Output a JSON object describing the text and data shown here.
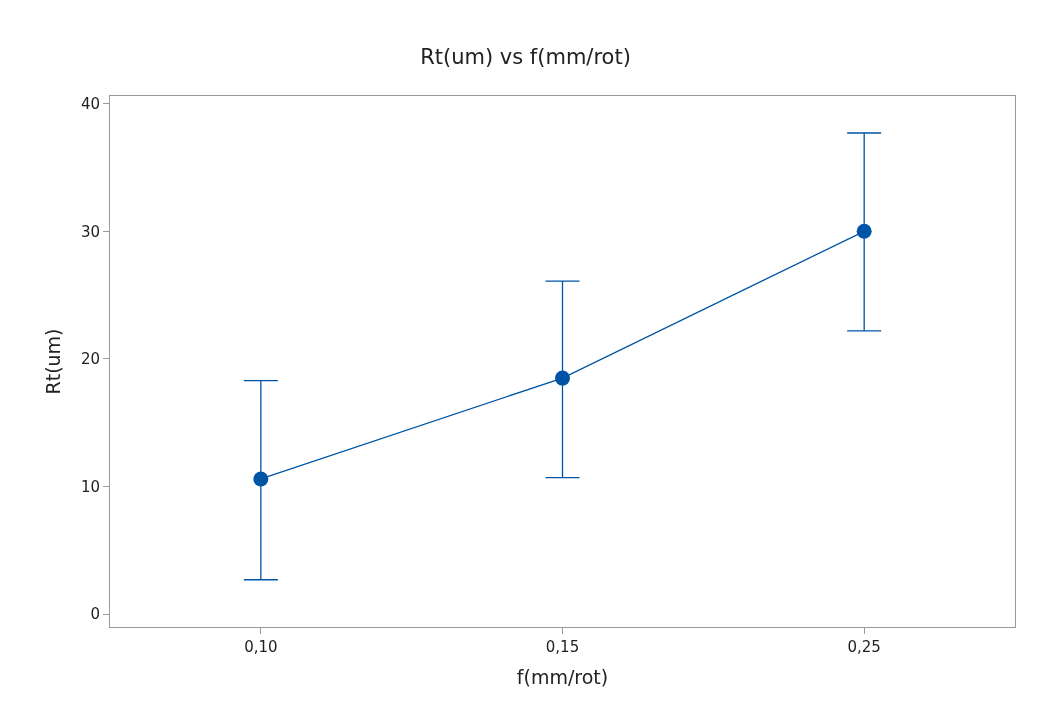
{
  "chart_data": {
    "type": "line",
    "title": "Rt(um) vs f(mm/rot)",
    "xlabel": "f(mm/rot)",
    "ylabel": "Rt(um)",
    "categories": [
      "0,10",
      "0,15",
      "0,25"
    ],
    "series": [
      {
        "color": "#0054a6",
        "values": [
          10.6,
          18.5,
          30.0
        ],
        "errors": [
          [
            2.7,
            18.3
          ],
          [
            10.7,
            26.1
          ],
          [
            22.2,
            37.7
          ]
        ]
      }
    ],
    "ylim": [
      -1,
      40.6
    ],
    "yticks": [
      0,
      10,
      20,
      30,
      40
    ],
    "legend": false,
    "marker": "circle",
    "line_style": "solid"
  }
}
